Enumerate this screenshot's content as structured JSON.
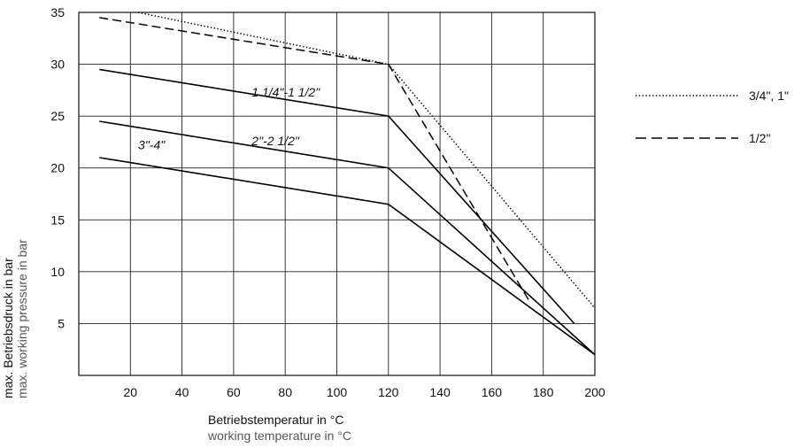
{
  "chart_data": {
    "type": "line",
    "xlabel": "Betriebstemperatur in °C",
    "xlabel_sub": "working temperature in °C",
    "ylabel": "max. Betriebsdruck in bar",
    "ylabel_sub": "max. working pressure in bar",
    "xlim": [
      0,
      200
    ],
    "ylim": [
      0,
      35
    ],
    "x_ticks": [
      20,
      40,
      60,
      80,
      100,
      120,
      140,
      160,
      180,
      200
    ],
    "y_ticks": [
      5,
      10,
      15,
      20,
      25,
      30,
      35
    ],
    "grid": true,
    "legend_position": "right",
    "series": [
      {
        "name": "3/4\", 1\"",
        "style": "dotted",
        "color": "#000000",
        "points": [
          [
            23,
            35
          ],
          [
            120,
            30
          ],
          [
            200,
            6.5
          ]
        ]
      },
      {
        "name": "1/2\"",
        "style": "dashed",
        "color": "#000000",
        "points": [
          [
            8,
            34.5
          ],
          [
            120,
            30
          ],
          [
            175,
            7
          ]
        ]
      },
      {
        "name": "1 1/4\"-1 1/2\"",
        "style": "solid",
        "color": "#000000",
        "points": [
          [
            8,
            29.5
          ],
          [
            120,
            25
          ],
          [
            192,
            5
          ]
        ]
      },
      {
        "name": "2\"-2 1/2\"",
        "style": "solid",
        "color": "#000000",
        "points": [
          [
            8,
            24.5
          ],
          [
            120,
            20
          ],
          [
            200,
            2
          ]
        ]
      },
      {
        "name": "3\"-4\"",
        "style": "solid",
        "color": "#000000",
        "points": [
          [
            8,
            21
          ],
          [
            120,
            16.5
          ],
          [
            200,
            2
          ]
        ]
      }
    ],
    "inline_labels": [
      {
        "text": "1 1/4\"-1 1/2\"",
        "x": 67,
        "y": 26.9
      },
      {
        "text": "2\"-2 1/2\"",
        "x": 67,
        "y": 22.2
      },
      {
        "text": "3\"-4\"",
        "x": 23,
        "y": 21.8
      }
    ],
    "legend": [
      {
        "text": "3/4\", 1\"",
        "style": "dotted"
      },
      {
        "text": "1/2\"",
        "style": "dashed"
      }
    ]
  }
}
